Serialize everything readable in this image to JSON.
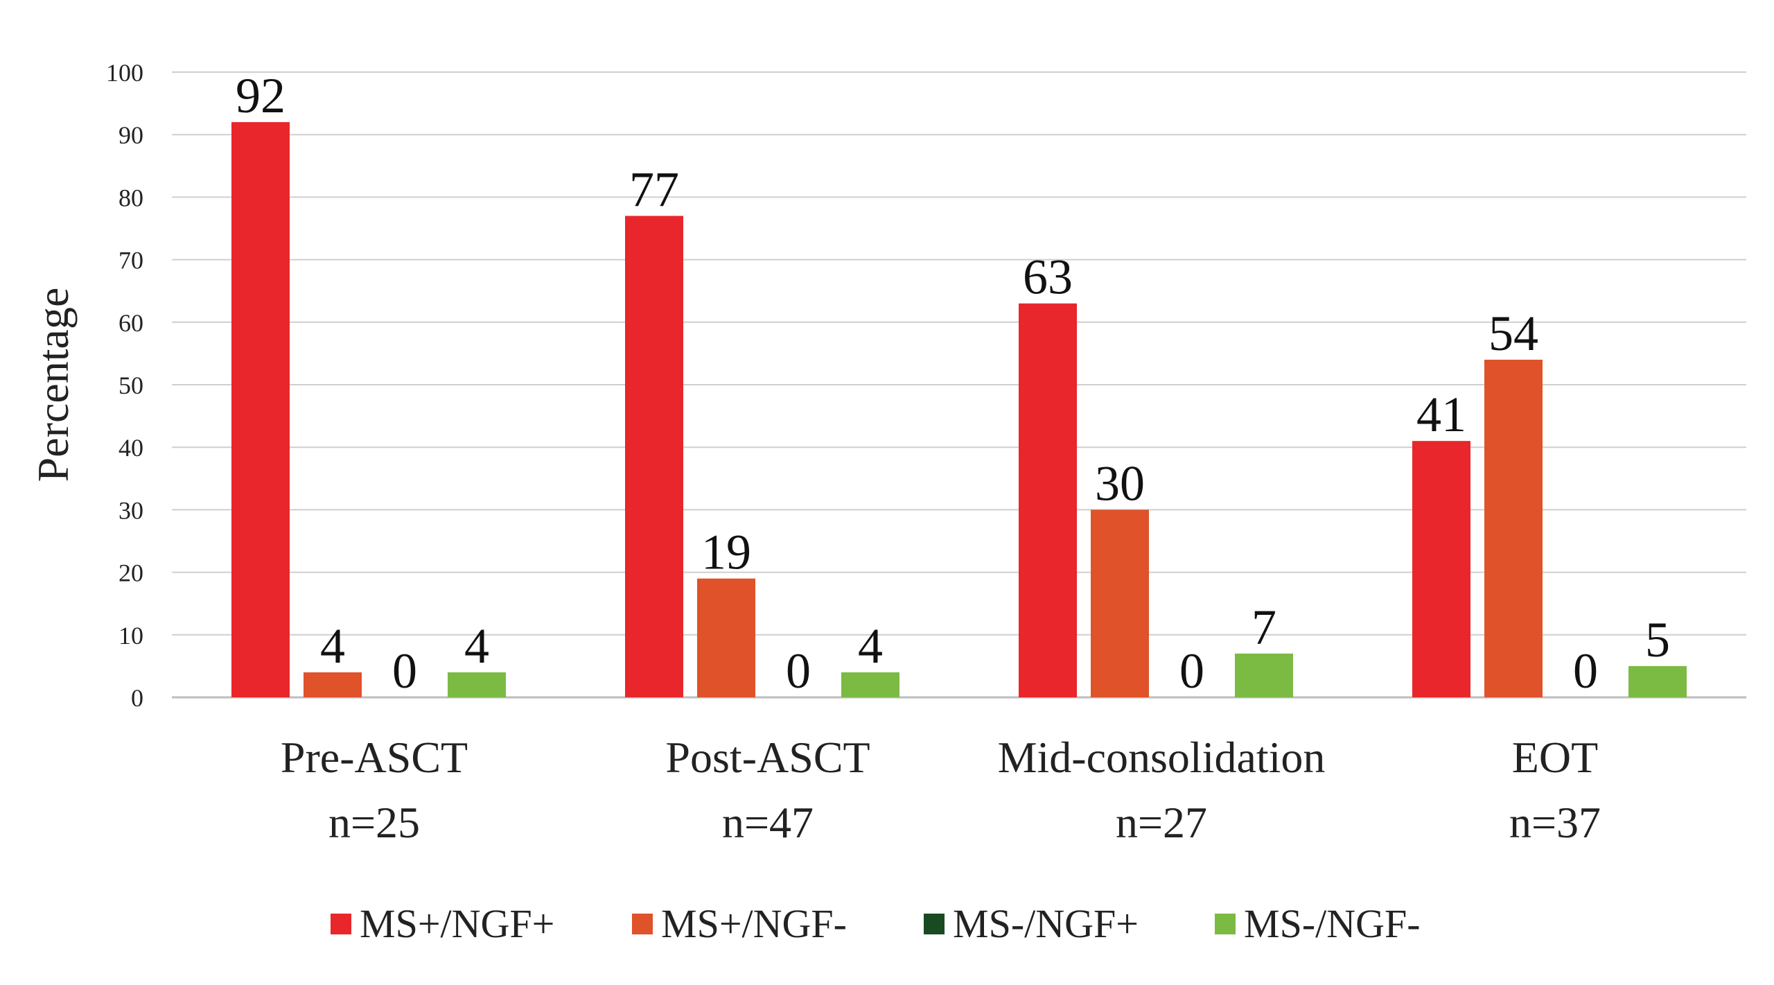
{
  "chart_data": {
    "type": "bar",
    "title": "",
    "xlabel": "",
    "ylabel": "Percentage",
    "ylim": [
      0,
      100
    ],
    "yticks": [
      "0",
      "10",
      "20",
      "30",
      "40",
      "50",
      "60",
      "70",
      "80",
      "90",
      "100"
    ],
    "grid": true,
    "legend_position": "bottom",
    "categories": [
      [
        "Pre-ASCT",
        "n=25"
      ],
      [
        "Post-ASCT",
        "n=47"
      ],
      [
        "Mid-consolidation",
        "n=27"
      ],
      [
        "EOT",
        "n=37"
      ]
    ],
    "series": [
      {
        "name": "MS+/NGF+",
        "color": "#e8262b",
        "values": [
          92,
          77,
          63,
          41
        ],
        "labels": [
          "92",
          "77",
          "63",
          "41"
        ]
      },
      {
        "name": "MS+/NGF-",
        "color": "#e0522a",
        "values": [
          4,
          19,
          30,
          54
        ],
        "labels": [
          "4",
          "19",
          "30",
          "54"
        ]
      },
      {
        "name": "MS-/NGF+",
        "color": "#1a4a22",
        "values": [
          0,
          0,
          0,
          0
        ],
        "labels": [
          "0",
          "0",
          "0",
          "0"
        ]
      },
      {
        "name": "MS-/NGF-",
        "color": "#7bba43",
        "values": [
          4,
          4,
          7,
          5
        ],
        "labels": [
          "4",
          "4",
          "7",
          "5"
        ]
      }
    ]
  }
}
